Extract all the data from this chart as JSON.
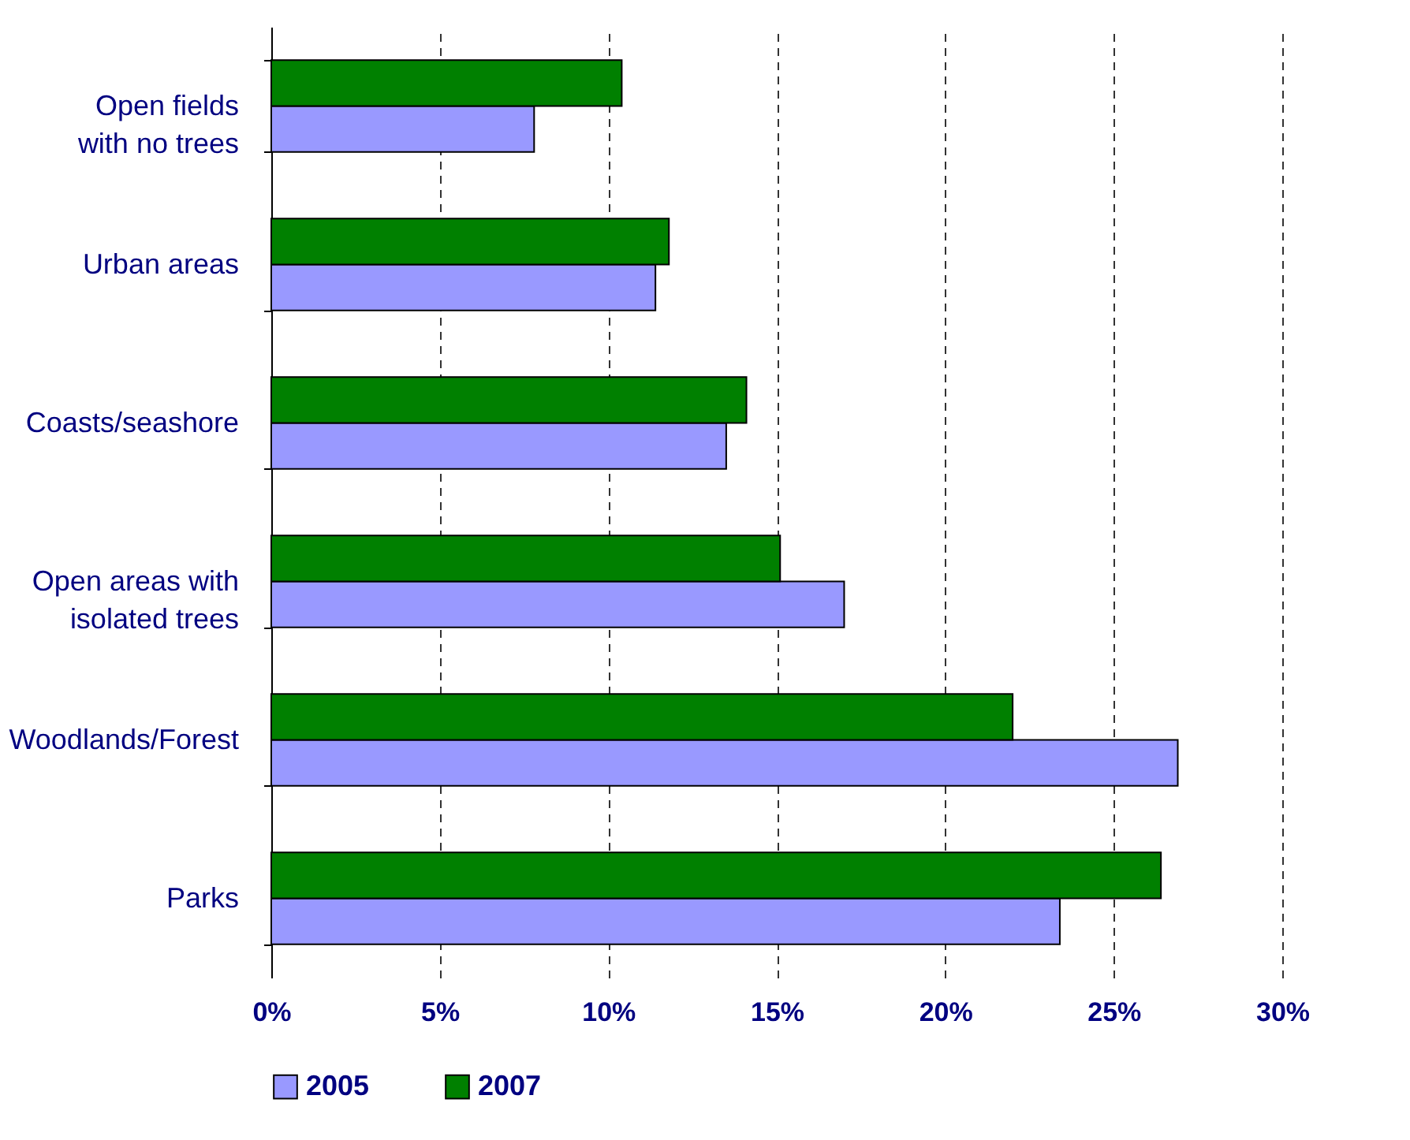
{
  "chart_data": {
    "type": "bar",
    "orientation": "horizontal",
    "categories": [
      "Open fields with no trees",
      "Urban areas",
      "Coasts/seashore",
      "Open areas with isolated trees",
      "Woodlands/Forest",
      "Parks"
    ],
    "series": [
      {
        "name": "2005",
        "color": "#9999ff",
        "values": [
          7.8,
          11.4,
          13.5,
          17.0,
          26.9,
          23.4
        ]
      },
      {
        "name": "2007",
        "color": "#008000",
        "values": [
          10.4,
          11.8,
          14.1,
          15.1,
          22.0,
          26.4
        ]
      }
    ],
    "xlim": [
      0,
      30
    ],
    "xticks": [
      {
        "value": 0,
        "label": "0%"
      },
      {
        "value": 5,
        "label": "5%"
      },
      {
        "value": 10,
        "label": "10%"
      },
      {
        "value": 15,
        "label": "15%"
      },
      {
        "value": 20,
        "label": "20%"
      },
      {
        "value": 25,
        "label": "25%"
      },
      {
        "value": 30,
        "label": "30%"
      }
    ],
    "grid": "x",
    "legend": "bottom"
  }
}
